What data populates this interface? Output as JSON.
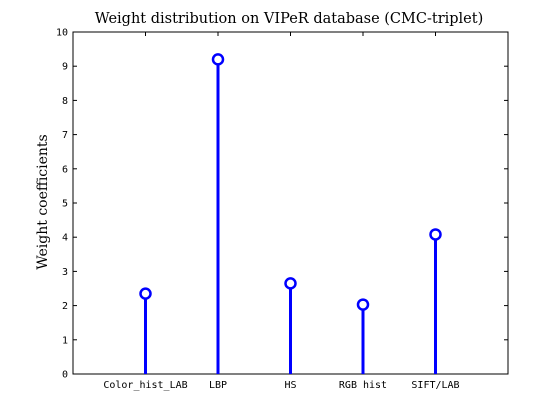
{
  "chart_data": {
    "type": "stem",
    "title": "Weight distribution on VIPeR database (CMC-triplet)",
    "xlabel": "",
    "ylabel": "Weight coefficients",
    "categories": [
      "Color_hist_LAB",
      "LBP",
      "HS",
      "RGB hist",
      "SIFT/LAB"
    ],
    "values": [
      2.35,
      9.2,
      2.65,
      2.03,
      4.08
    ],
    "ylim": [
      0,
      10
    ],
    "yticks": [
      "0",
      "1",
      "2",
      "3",
      "4",
      "5",
      "6",
      "7",
      "8",
      "9",
      "10"
    ],
    "marker": "circle",
    "color": "#0000ff",
    "grid": false
  }
}
